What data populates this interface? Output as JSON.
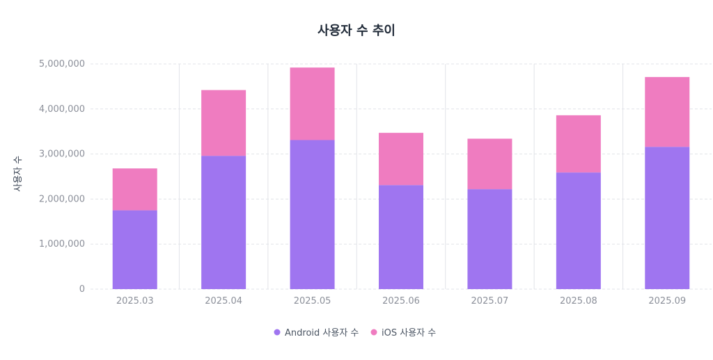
{
  "chart_data": {
    "type": "bar",
    "stacked": true,
    "title": "사용자 수 추이",
    "xlabel": "",
    "ylabel": "사용자 수",
    "ylim": [
      0,
      5000000
    ],
    "yticks": [
      "0",
      "1,000,000",
      "2,000,000",
      "3,000,000",
      "4,000,000",
      "5,000,000"
    ],
    "categories": [
      "2025.03",
      "2025.04",
      "2025.05",
      "2025.06",
      "2025.07",
      "2025.08",
      "2025.09"
    ],
    "series": [
      {
        "name": "Android 사용자 수",
        "color": "#9f75f0",
        "values": [
          1750000,
          2960000,
          3310000,
          2310000,
          2220000,
          2590000,
          3160000
        ]
      },
      {
        "name": "iOS 사용자 수",
        "color": "#ef7cc0",
        "values": [
          930000,
          1460000,
          1610000,
          1160000,
          1120000,
          1270000,
          1550000
        ]
      }
    ],
    "grid": true,
    "legend": "bottom-center"
  }
}
